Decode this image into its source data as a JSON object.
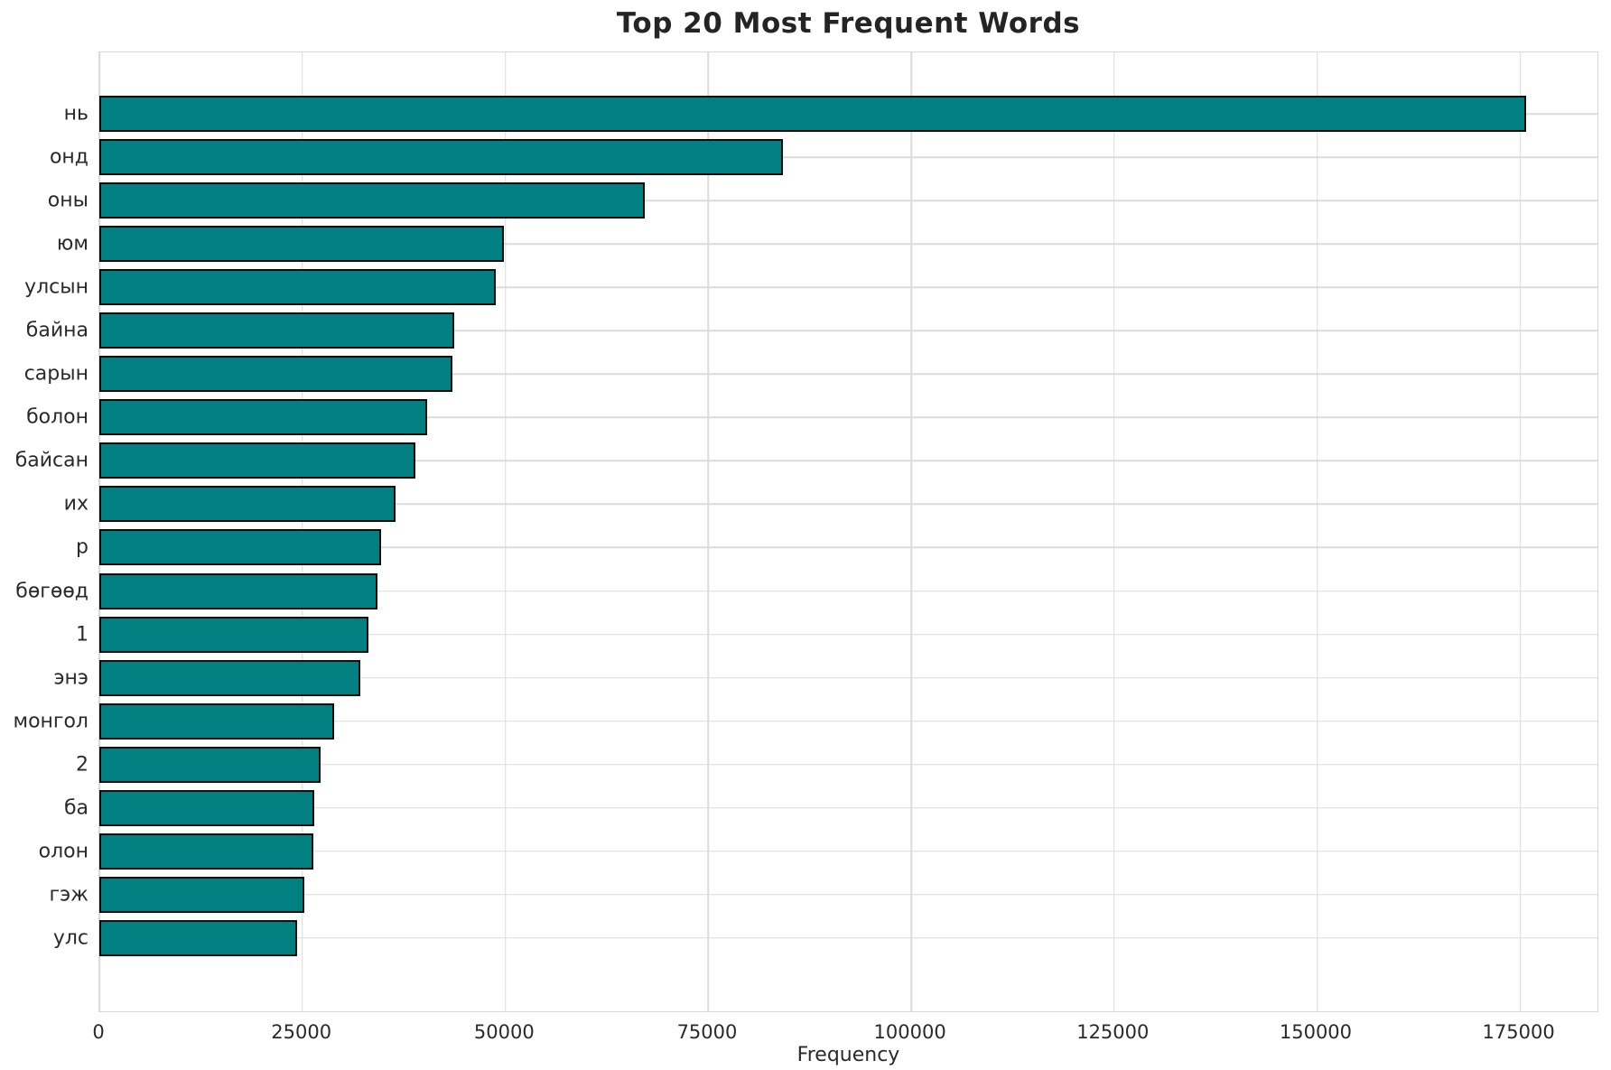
{
  "title": "Top 20 Most Frequent Words",
  "colors": {
    "bar_fill": "#008080",
    "bar_edge": "#0c0c0c",
    "grid": "#dcdcdc",
    "text": "#2a2a2a",
    "background": "#ffffff"
  },
  "chart_data": {
    "type": "bar",
    "orientation": "horizontal",
    "title": "Top 20 Most Frequent Words",
    "xlabel": "Frequency",
    "ylabel": "",
    "categories": [
      "нь",
      "онд",
      "оны",
      "юм",
      "улсын",
      "байна",
      "сарын",
      "болон",
      "байсан",
      "их",
      "р",
      "бөгөөд",
      "1",
      "энэ",
      "монгол",
      "2",
      "ба",
      "олон",
      "гэж",
      "улс"
    ],
    "values": [
      175700,
      84200,
      67200,
      49800,
      48800,
      43700,
      43500,
      40400,
      38900,
      36500,
      34700,
      34300,
      33100,
      32100,
      28900,
      27200,
      26500,
      26400,
      25300,
      24400
    ],
    "xticks": [
      0,
      25000,
      50000,
      75000,
      100000,
      125000,
      150000,
      175000
    ],
    "xlim": [
      0,
      184500
    ],
    "grid": true,
    "legend_position": "none"
  }
}
